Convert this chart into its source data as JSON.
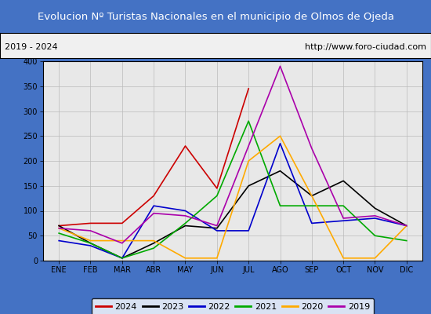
{
  "title": "Evolucion Nº Turistas Nacionales en el municipio de Olmos de Ojeda",
  "subtitle_left": "2019 - 2024",
  "subtitle_right": "http://www.foro-ciudad.com",
  "title_bg_color": "#4472c4",
  "title_text_color": "#ffffff",
  "subtitle_bg_color": "#f0f0f0",
  "subtitle_text_color": "#000000",
  "plot_bg_color": "#e8e8e8",
  "months": [
    "ENE",
    "FEB",
    "MAR",
    "ABR",
    "MAY",
    "JUN",
    "JUL",
    "AGO",
    "SEP",
    "OCT",
    "NOV",
    "DIC"
  ],
  "ylim": [
    0,
    400
  ],
  "yticks": [
    0,
    50,
    100,
    150,
    200,
    250,
    300,
    350,
    400
  ],
  "series": {
    "2024": {
      "color": "#cc0000",
      "data": [
        70,
        75,
        75,
        130,
        230,
        145,
        345,
        null,
        null,
        null,
        null,
        null
      ]
    },
    "2023": {
      "color": "#000000",
      "data": [
        70,
        35,
        5,
        35,
        70,
        65,
        150,
        180,
        130,
        160,
        105,
        70
      ]
    },
    "2022": {
      "color": "#0000cc",
      "data": [
        40,
        30,
        5,
        110,
        100,
        60,
        60,
        235,
        75,
        80,
        85,
        70
      ]
    },
    "2021": {
      "color": "#00aa00",
      "data": [
        55,
        35,
        5,
        25,
        75,
        130,
        280,
        110,
        110,
        110,
        50,
        40
      ]
    },
    "2020": {
      "color": "#ffaa00",
      "data": [
        65,
        40,
        40,
        40,
        5,
        5,
        200,
        250,
        130,
        5,
        5,
        70
      ]
    },
    "2019": {
      "color": "#aa00aa",
      "data": [
        65,
        60,
        35,
        95,
        90,
        70,
        230,
        390,
        225,
        85,
        90,
        70
      ]
    }
  },
  "legend_order": [
    "2024",
    "2023",
    "2022",
    "2021",
    "2020",
    "2019"
  ]
}
